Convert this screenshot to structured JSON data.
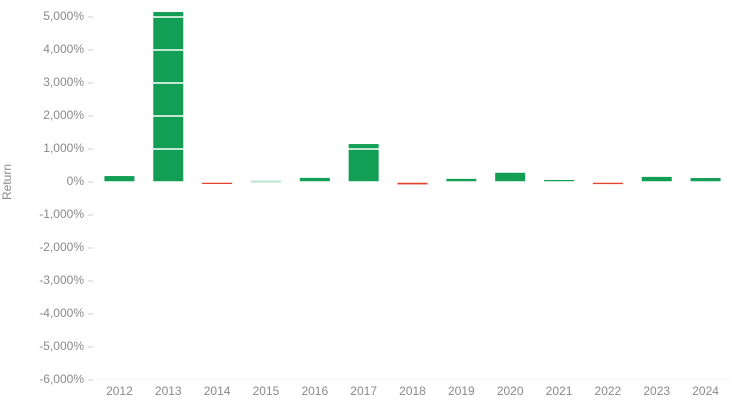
{
  "chart_data": {
    "type": "bar",
    "y_label": "Return",
    "categories": [
      "2012",
      "2013",
      "2014",
      "2015",
      "2016",
      "2017",
      "2018",
      "2019",
      "2020",
      "2021",
      "2022",
      "2023",
      "2024"
    ],
    "values": [
      180,
      5150,
      -60,
      35,
      125,
      1150,
      -73,
      95,
      280,
      60,
      -64,
      155,
      120
    ],
    "positive_color": "#129e54",
    "negative_color": "#e8412d",
    "ylim": [
      -6000,
      5500
    ],
    "yticks": [
      {
        "value": -6000,
        "label": "-6,000%"
      },
      {
        "value": -5000,
        "label": "-5,000%"
      },
      {
        "value": -4000,
        "label": "-4,000%"
      },
      {
        "value": -3000,
        "label": "-3,000%"
      },
      {
        "value": -2000,
        "label": "-2,000%"
      },
      {
        "value": -1000,
        "label": "-1,000%"
      },
      {
        "value": 0,
        "label": "0%"
      },
      {
        "value": 1000,
        "label": "1,000%"
      },
      {
        "value": 2000,
        "label": "2,000%"
      },
      {
        "value": 3000,
        "label": "3,000%"
      },
      {
        "value": 4000,
        "label": "4,000%"
      },
      {
        "value": 5000,
        "label": "5,000%"
      }
    ],
    "grid": true,
    "grid_color": "#ffffff"
  }
}
